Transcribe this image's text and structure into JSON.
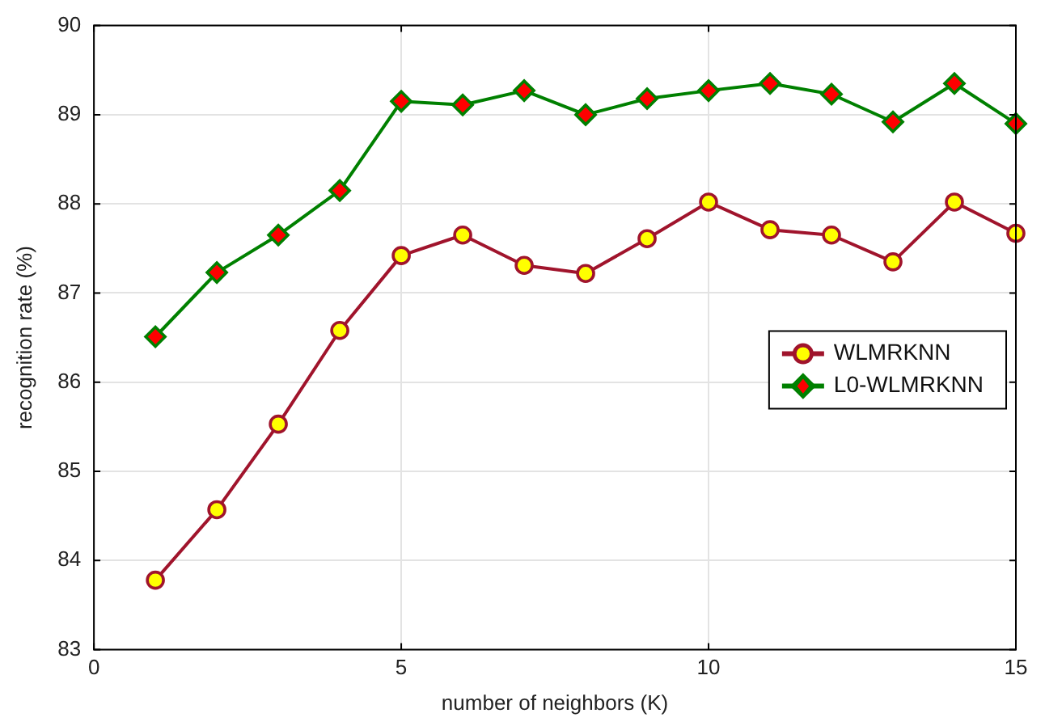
{
  "chart_data": {
    "type": "line",
    "xlabel": "number of neighbors (K)",
    "ylabel": "recognition rate (%)",
    "x": [
      1,
      2,
      3,
      4,
      5,
      6,
      7,
      8,
      9,
      10,
      11,
      12,
      13,
      14,
      15
    ],
    "series": [
      {
        "name": "WLMRKNN",
        "color": "#a0142c",
        "marker": "circle",
        "values": [
          83.78,
          84.57,
          85.53,
          86.58,
          87.42,
          87.65,
          87.31,
          87.22,
          87.61,
          88.02,
          87.71,
          87.65,
          87.35,
          88.02,
          87.67
        ]
      },
      {
        "name": "L0-WLMRKNN",
        "color": "#008000",
        "marker": "diamond",
        "values": [
          86.51,
          87.23,
          87.65,
          88.15,
          89.15,
          89.11,
          89.27,
          89.0,
          89.18,
          89.27,
          89.35,
          89.23,
          88.92,
          89.35,
          88.9
        ]
      }
    ],
    "xlim": [
      0,
      15
    ],
    "xticks": [
      0,
      5,
      10,
      15
    ],
    "ylim": [
      83,
      90
    ],
    "yticks": [
      83,
      84,
      85,
      86,
      87,
      88,
      89,
      90
    ],
    "grid": true,
    "legend": "right",
    "line_style": "solid"
  }
}
